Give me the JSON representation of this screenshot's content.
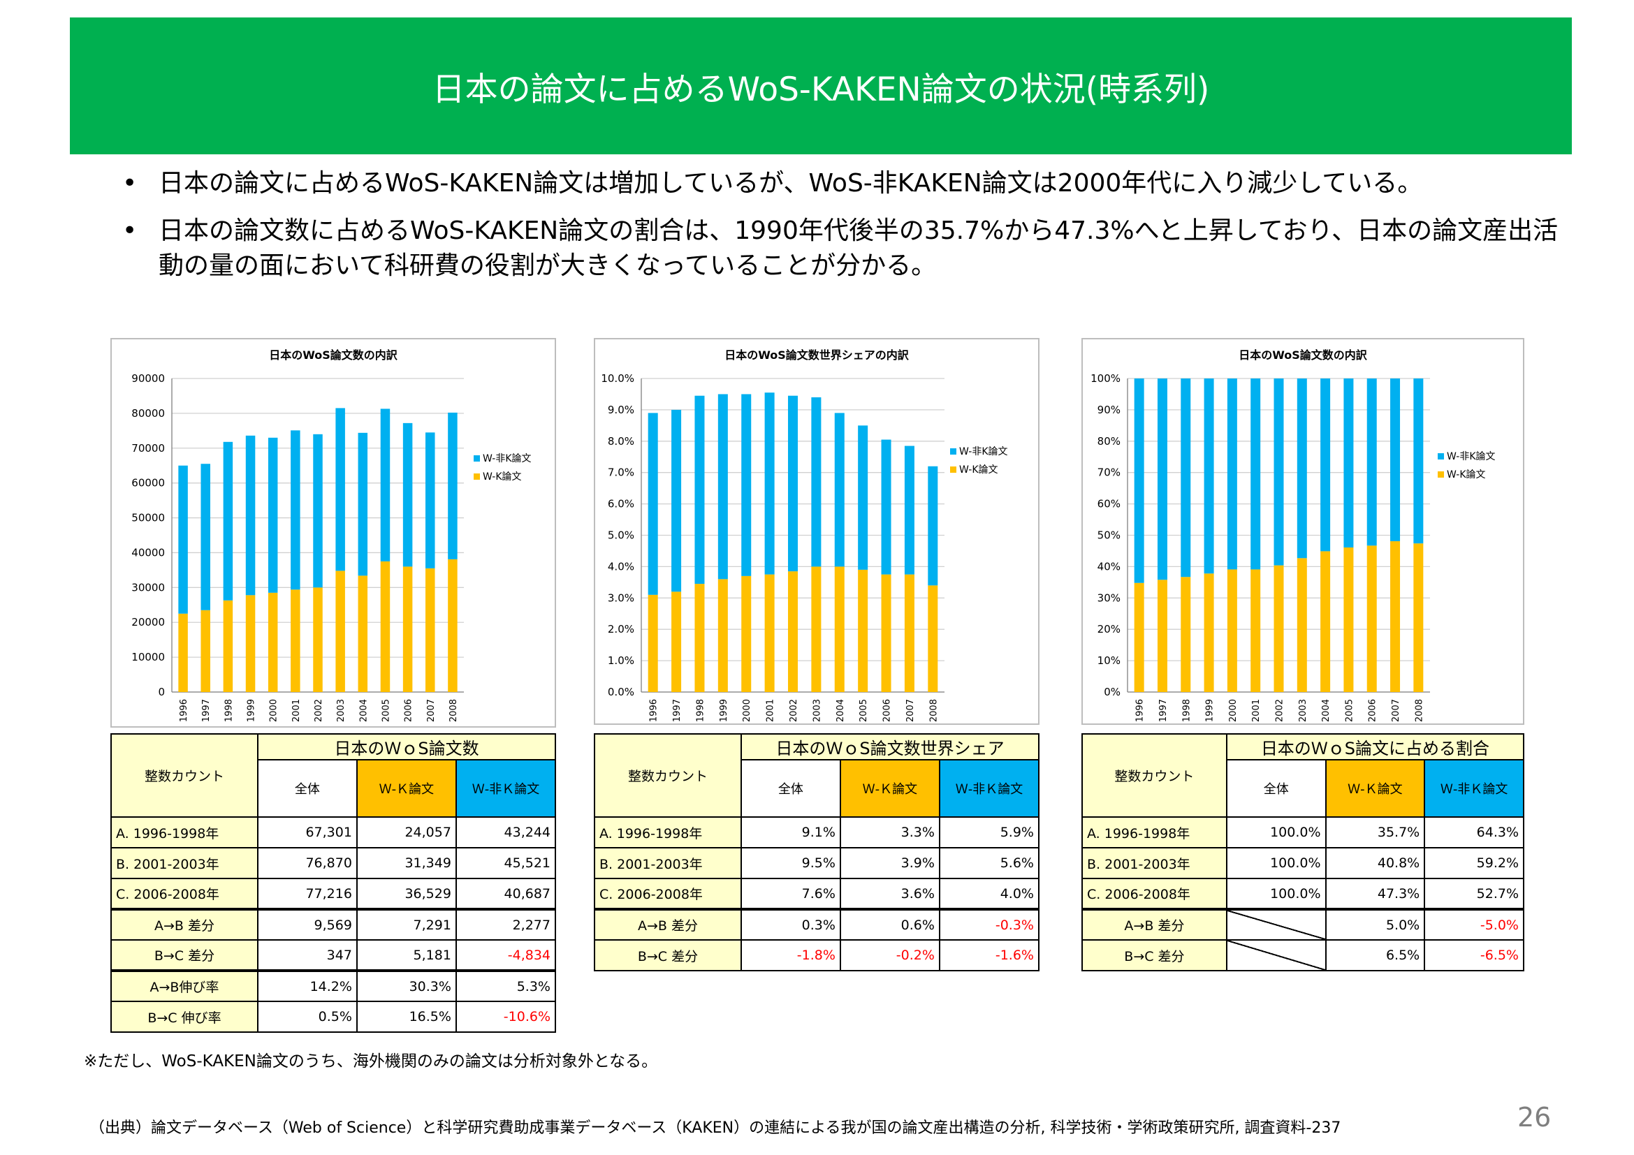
{
  "header": {
    "title": "日本の論文に占めるWoS-KAKEN論文の状況(時系列)"
  },
  "bullets": [
    "日本の論文に占めるWoS-KAKEN論文は増加しているが、WoS-非KAKEN論文は2000年代に入り減少している。",
    "日本の論文数に占めるWoS-KAKEN論文の割合は、1990年代後半の35.7%から47.3%へと上昇しており、日本の論文産出活動の量の面において科研費の役割が大きくなっていることが分かる。"
  ],
  "chart_data": [
    {
      "type": "bar",
      "stacked": true,
      "title": "日本のWoS論文数の内訳",
      "categories": [
        "1996",
        "1997",
        "1998",
        "1999",
        "2000",
        "2001",
        "2002",
        "2003",
        "2004",
        "2005",
        "2006",
        "2007",
        "2008"
      ],
      "series": [
        {
          "name": "W-非K論文",
          "color": "#00b0f0",
          "values": [
            42500,
            42000,
            45500,
            45800,
            44500,
            45700,
            44000,
            46700,
            41000,
            43800,
            41200,
            39000,
            42100
          ]
        },
        {
          "name": "W-K論文",
          "color": "#ffc000",
          "values": [
            22500,
            23500,
            26300,
            27800,
            28500,
            29400,
            30000,
            34800,
            33400,
            37500,
            36000,
            35500,
            38100
          ]
        }
      ],
      "legend_order": [
        "W-非K論文",
        "W-K論文"
      ],
      "ylim": [
        0,
        90000
      ],
      "yticks": [
        "0",
        "10000",
        "20000",
        "30000",
        "40000",
        "50000",
        "60000",
        "70000",
        "80000",
        "90000"
      ],
      "legend": "right"
    },
    {
      "type": "bar",
      "stacked": true,
      "title": "日本のWoS論文数世界シェアの内訳",
      "categories": [
        "1996",
        "1997",
        "1998",
        "1999",
        "2000",
        "2001",
        "2002",
        "2003",
        "2004",
        "2005",
        "2006",
        "2007",
        "2008"
      ],
      "series": [
        {
          "name": "W-非K論文",
          "color": "#00b0f0",
          "values": [
            5.8,
            5.8,
            6.0,
            5.9,
            5.8,
            5.8,
            5.6,
            5.4,
            4.9,
            4.6,
            4.3,
            4.1,
            3.8
          ]
        },
        {
          "name": "W-K論文",
          "color": "#ffc000",
          "values": [
            3.1,
            3.2,
            3.45,
            3.6,
            3.7,
            3.75,
            3.85,
            4.0,
            4.0,
            3.9,
            3.75,
            3.75,
            3.4
          ]
        }
      ],
      "legend_order": [
        "W-非K論文",
        "W-K論文"
      ],
      "ylim": [
        0,
        10
      ],
      "yticks": [
        "0.0%",
        "1.0%",
        "2.0%",
        "3.0%",
        "4.0%",
        "5.0%",
        "6.0%",
        "7.0%",
        "8.0%",
        "9.0%",
        "10.0%"
      ],
      "legend": "right"
    },
    {
      "type": "bar",
      "stacked": true,
      "title": "日本のWoS論文数の内訳",
      "categories": [
        "1996",
        "1997",
        "1998",
        "1999",
        "2000",
        "2001",
        "2002",
        "2003",
        "2004",
        "2005",
        "2006",
        "2007",
        "2008"
      ],
      "series": [
        {
          "name": "W-非K論文",
          "color": "#00b0f0",
          "values": [
            65.2,
            64.2,
            63.3,
            62.2,
            60.9,
            60.9,
            59.6,
            57.3,
            55.1,
            53.9,
            53.3,
            51.9,
            52.6
          ]
        },
        {
          "name": "W-K論文",
          "color": "#ffc000",
          "values": [
            34.8,
            35.8,
            36.7,
            37.8,
            39.1,
            39.1,
            40.4,
            42.7,
            44.9,
            46.1,
            46.7,
            48.1,
            47.4
          ]
        }
      ],
      "legend_order": [
        "W-非K論文",
        "W-K論文"
      ],
      "ylim": [
        0,
        100
      ],
      "yticks": [
        "0%",
        "10%",
        "20%",
        "30%",
        "40%",
        "50%",
        "60%",
        "70%",
        "80%",
        "90%",
        "100%"
      ],
      "legend": "right"
    }
  ],
  "table1": {
    "corner": "整数カウント",
    "title": "日本のＷｏS論文数",
    "columns": [
      "全体",
      "Ｗ-Ｋ論文",
      "Ｗ-非Ｋ論文"
    ],
    "rows": [
      {
        "label": "A. 1996-1998年",
        "values": [
          "67,301",
          "24,057",
          "43,244"
        ]
      },
      {
        "label": "B. 2001-2003年",
        "values": [
          "76,870",
          "31,349",
          "45,521"
        ]
      },
      {
        "label": "C. 2006-2008年",
        "values": [
          "77,216",
          "36,529",
          "40,687"
        ]
      },
      {
        "label": "A→B 差分",
        "values": [
          "9,569",
          "7,291",
          "2,277"
        ]
      },
      {
        "label": "B→C 差分",
        "values": [
          "347",
          "5,181",
          "-4,834"
        ]
      },
      {
        "label": "A→B伸び率",
        "values": [
          "14.2%",
          "30.3%",
          "5.3%"
        ]
      },
      {
        "label": "B→C 伸び率",
        "values": [
          "0.5%",
          "16.5%",
          "-10.6%"
        ]
      }
    ]
  },
  "table2": {
    "corner": "整数カウント",
    "title": "日本のＷｏS論文数世界シェア",
    "columns": [
      "全体",
      "Ｗ-Ｋ論文",
      "Ｗ-非Ｋ論文"
    ],
    "rows": [
      {
        "label": "A. 1996-1998年",
        "values": [
          "9.1%",
          "3.3%",
          "5.9%"
        ]
      },
      {
        "label": "B. 2001-2003年",
        "values": [
          "9.5%",
          "3.9%",
          "5.6%"
        ]
      },
      {
        "label": "C. 2006-2008年",
        "values": [
          "7.6%",
          "3.6%",
          "4.0%"
        ]
      },
      {
        "label": "A→B 差分",
        "values": [
          "0.3%",
          "0.6%",
          "-0.3%"
        ]
      },
      {
        "label": "B→C 差分",
        "values": [
          "-1.8%",
          "-0.2%",
          "-1.6%"
        ]
      }
    ]
  },
  "table3": {
    "corner": "整数カウント",
    "title": "日本のＷｏS論文に占める割合",
    "columns": [
      "全体",
      "Ｗ-Ｋ論文",
      "Ｗ-非Ｋ論文"
    ],
    "rows": [
      {
        "label": "A. 1996-1998年",
        "values": [
          "100.0%",
          "35.7%",
          "64.3%"
        ]
      },
      {
        "label": "B. 2001-2003年",
        "values": [
          "100.0%",
          "40.8%",
          "59.2%"
        ]
      },
      {
        "label": "C. 2006-2008年",
        "values": [
          "100.0%",
          "47.3%",
          "52.7%"
        ]
      },
      {
        "label": "A→B 差分",
        "values": [
          "",
          "5.0%",
          "-5.0%"
        ]
      },
      {
        "label": "B→C 差分",
        "values": [
          "",
          "6.5%",
          "-6.5%"
        ]
      }
    ]
  },
  "note": "※ただし、WoS-KAKEN論文のうち、海外機関のみの論文は分析対象外となる。",
  "source": "（出典）論文データベース（Web of Science）と科学研究費助成事業データベース（KAKEN）の連結による我が国の論文産出構造の分析, 科学技術・学術政策研究所, 調査資料-237",
  "page_number": "26",
  "colors": {
    "header": "#00b050",
    "wk": "#ffc000",
    "nk": "#00b0f0",
    "negative": "#ff0000",
    "label_bg": "#ffffcc"
  }
}
